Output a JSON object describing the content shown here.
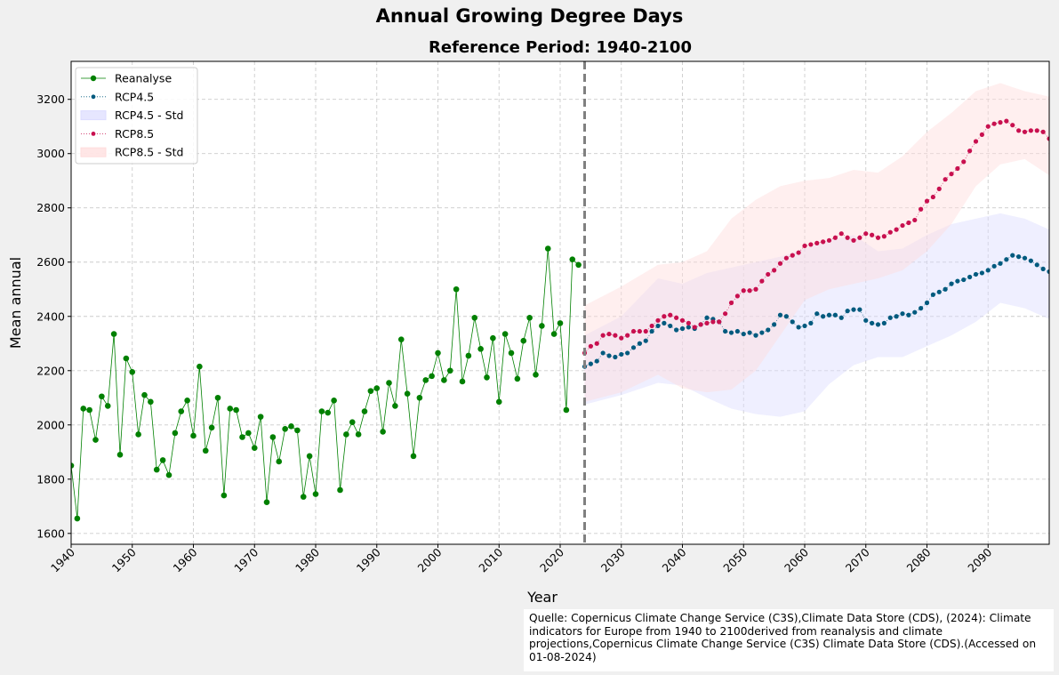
{
  "figure": {
    "suptitle": "Annual Growing Degree Days",
    "source": "Quelle: Copernicus Climate Change Service (C3S),Climate Data Store (CDS), (2024): Climate indicators for Europe from 1940 to 2100derived from reanalysis and climate projections,Copernicus Climate Change Service (C3S) Climate Data Store (CDS).(Accessed on 01-08-2024)"
  },
  "colors": {
    "reanalyse": "#008000",
    "rcp45": "#005a7e",
    "rcp85": "#c8104f",
    "rcp45_std": "#dcdcff",
    "rcp85_std": "#ffdcdc",
    "vline": "#808080",
    "grid": "#cccccc"
  },
  "chart_data": {
    "type": "line",
    "title": "Reference Period: 1940-2100",
    "xlabel": "Year",
    "ylabel": "Mean annual",
    "xlim": [
      1940,
      2100
    ],
    "ylim": [
      1560,
      3340
    ],
    "xticks": [
      1940,
      1950,
      1960,
      1970,
      1980,
      1990,
      2000,
      2010,
      2020,
      2030,
      2040,
      2050,
      2060,
      2070,
      2080,
      2090
    ],
    "yticks": [
      1600,
      1800,
      2000,
      2200,
      2400,
      2600,
      2800,
      3000,
      3200
    ],
    "grid": true,
    "legend_position": "upper-left",
    "vline_x": 2024,
    "series": [
      {
        "name": "Reanalyse",
        "x": [
          1940,
          1941,
          1942,
          1943,
          1944,
          1945,
          1946,
          1947,
          1948,
          1949,
          1950,
          1951,
          1952,
          1953,
          1954,
          1955,
          1956,
          1957,
          1958,
          1959,
          1960,
          1961,
          1962,
          1963,
          1964,
          1965,
          1966,
          1967,
          1968,
          1969,
          1970,
          1971,
          1972,
          1973,
          1974,
          1975,
          1976,
          1977,
          1978,
          1979,
          1980,
          1981,
          1982,
          1983,
          1984,
          1985,
          1986,
          1987,
          1988,
          1989,
          1990,
          1991,
          1992,
          1993,
          1994,
          1995,
          1996,
          1997,
          1998,
          1999,
          2000,
          2001,
          2002,
          2003,
          2004,
          2005,
          2006,
          2007,
          2008,
          2009,
          2010,
          2011,
          2012,
          2013,
          2014,
          2015,
          2016,
          2017,
          2018,
          2019,
          2020,
          2021,
          2022,
          2023
        ],
        "values": [
          1850,
          1655,
          2060,
          2055,
          1945,
          2105,
          2070,
          2335,
          1890,
          2245,
          2195,
          1965,
          2110,
          2085,
          1835,
          1870,
          1815,
          1970,
          2050,
          2090,
          1960,
          2215,
          1905,
          1990,
          2100,
          1740,
          2060,
          2055,
          1955,
          1970,
          1915,
          2030,
          1715,
          1955,
          1865,
          1985,
          1995,
          1980,
          1735,
          1885,
          1745,
          2050,
          2045,
          2090,
          1760,
          1965,
          2010,
          1965,
          2050,
          2125,
          2135,
          1975,
          2155,
          2070,
          2315,
          2115,
          1885,
          2100,
          2165,
          2180,
          2265,
          2165,
          2200,
          2500,
          2160,
          2255,
          2395,
          2280,
          2175,
          2320,
          2085,
          2335,
          2265,
          2170,
          2310,
          2395,
          2185,
          2365,
          2650,
          2335,
          2375,
          2055,
          2610,
          2590
        ]
      },
      {
        "name": "RCP4.5",
        "x": [
          2024,
          2025,
          2026,
          2027,
          2028,
          2029,
          2030,
          2031,
          2032,
          2033,
          2034,
          2035,
          2036,
          2037,
          2038,
          2039,
          2040,
          2041,
          2042,
          2043,
          2044,
          2045,
          2046,
          2047,
          2048,
          2049,
          2050,
          2051,
          2052,
          2053,
          2054,
          2055,
          2056,
          2057,
          2058,
          2059,
          2060,
          2061,
          2062,
          2063,
          2064,
          2065,
          2066,
          2067,
          2068,
          2069,
          2070,
          2071,
          2072,
          2073,
          2074,
          2075,
          2076,
          2077,
          2078,
          2079,
          2080,
          2081,
          2082,
          2083,
          2084,
          2085,
          2086,
          2087,
          2088,
          2089,
          2090,
          2091,
          2092,
          2093,
          2094,
          2095,
          2096,
          2097,
          2098,
          2099,
          2100
        ],
        "values": [
          2215,
          2225,
          2235,
          2265,
          2255,
          2250,
          2260,
          2265,
          2285,
          2300,
          2310,
          2345,
          2365,
          2375,
          2365,
          2350,
          2355,
          2360,
          2355,
          2370,
          2395,
          2390,
          2380,
          2345,
          2340,
          2345,
          2335,
          2340,
          2330,
          2340,
          2350,
          2370,
          2405,
          2400,
          2380,
          2360,
          2365,
          2375,
          2410,
          2400,
          2405,
          2405,
          2395,
          2420,
          2425,
          2425,
          2385,
          2375,
          2370,
          2375,
          2395,
          2400,
          2410,
          2405,
          2415,
          2430,
          2450,
          2480,
          2490,
          2500,
          2520,
          2530,
          2535,
          2545,
          2555,
          2560,
          2570,
          2585,
          2595,
          2610,
          2625,
          2620,
          2615,
          2605,
          2590,
          2575,
          2565
        ]
      },
      {
        "name": "RCP8.5",
        "x": [
          2024,
          2025,
          2026,
          2027,
          2028,
          2029,
          2030,
          2031,
          2032,
          2033,
          2034,
          2035,
          2036,
          2037,
          2038,
          2039,
          2040,
          2041,
          2042,
          2043,
          2044,
          2045,
          2046,
          2047,
          2048,
          2049,
          2050,
          2051,
          2052,
          2053,
          2054,
          2055,
          2056,
          2057,
          2058,
          2059,
          2060,
          2061,
          2062,
          2063,
          2064,
          2065,
          2066,
          2067,
          2068,
          2069,
          2070,
          2071,
          2072,
          2073,
          2074,
          2075,
          2076,
          2077,
          2078,
          2079,
          2080,
          2081,
          2082,
          2083,
          2084,
          2085,
          2086,
          2087,
          2088,
          2089,
          2090,
          2091,
          2092,
          2093,
          2094,
          2095,
          2096,
          2097,
          2098,
          2099,
          2100
        ],
        "values": [
          2265,
          2290,
          2300,
          2330,
          2335,
          2330,
          2320,
          2330,
          2345,
          2345,
          2345,
          2365,
          2385,
          2400,
          2405,
          2395,
          2385,
          2375,
          2360,
          2370,
          2375,
          2380,
          2380,
          2410,
          2450,
          2475,
          2495,
          2495,
          2500,
          2530,
          2555,
          2570,
          2595,
          2615,
          2625,
          2635,
          2660,
          2665,
          2670,
          2675,
          2680,
          2690,
          2705,
          2690,
          2680,
          2690,
          2705,
          2700,
          2690,
          2695,
          2710,
          2720,
          2735,
          2745,
          2755,
          2795,
          2825,
          2840,
          2870,
          2905,
          2925,
          2945,
          2970,
          3010,
          3045,
          3070,
          3100,
          3110,
          3115,
          3120,
          3105,
          3085,
          3080,
          3085,
          3085,
          3080,
          3055
        ]
      }
    ],
    "bands": [
      {
        "name": "RCP4.5 - Std",
        "x": [
          2024,
          2030,
          2036,
          2040,
          2044,
          2048,
          2052,
          2056,
          2060,
          2064,
          2068,
          2072,
          2076,
          2080,
          2084,
          2088,
          2092,
          2096,
          2100
        ],
        "lower": [
          2075,
          2110,
          2155,
          2145,
          2100,
          2060,
          2040,
          2030,
          2050,
          2150,
          2220,
          2250,
          2250,
          2290,
          2330,
          2380,
          2450,
          2430,
          2390
        ],
        "upper": [
          2330,
          2400,
          2540,
          2520,
          2560,
          2580,
          2600,
          2620,
          2650,
          2680,
          2700,
          2640,
          2650,
          2700,
          2740,
          2760,
          2780,
          2760,
          2720
        ]
      },
      {
        "name": "RCP8.5 - Std",
        "x": [
          2024,
          2030,
          2036,
          2040,
          2044,
          2048,
          2052,
          2056,
          2060,
          2064,
          2068,
          2072,
          2076,
          2080,
          2084,
          2088,
          2092,
          2096,
          2100
        ],
        "lower": [
          2085,
          2120,
          2185,
          2135,
          2120,
          2130,
          2200,
          2330,
          2460,
          2500,
          2520,
          2540,
          2570,
          2640,
          2740,
          2880,
          2960,
          2980,
          2920
        ],
        "upper": [
          2440,
          2510,
          2590,
          2600,
          2640,
          2760,
          2830,
          2880,
          2900,
          2910,
          2940,
          2930,
          2990,
          3080,
          3150,
          3230,
          3260,
          3230,
          3210
        ]
      }
    ]
  }
}
